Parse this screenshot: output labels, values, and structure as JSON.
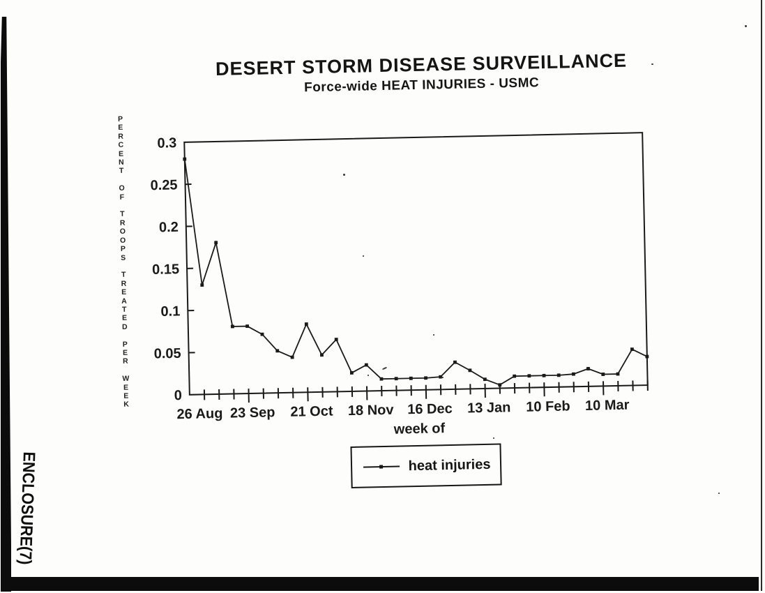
{
  "page": {
    "stamp": "ENCLOSURE(7)"
  },
  "chart_data": {
    "type": "line",
    "title": "DESERT STORM DISEASE SURVEILLANCE",
    "subtitle": "Force-wide HEAT INJURIES - USMC",
    "xlabel": "week of",
    "ylabel": "PERCENT OF TROOPS TREATED PER WEEK",
    "ylim": [
      0,
      0.3
    ],
    "y_tick_values": [
      0,
      0.05,
      0.1,
      0.15,
      0.2,
      0.25,
      0.3
    ],
    "y_tick_labels": [
      "0",
      "0.05",
      "0.1",
      "0.15",
      "0.2",
      "0.25",
      "0.3"
    ],
    "x_tick_labels": [
      "26 Aug",
      "23 Sep",
      "21 Oct",
      "18 Nov",
      "16 Dec",
      "13 Jan",
      "10 Feb",
      "10 Mar"
    ],
    "x_major_every": 4,
    "n_points": 32,
    "x_unit": "week",
    "grid": false,
    "legend_position": "bottom",
    "ink_color": "#1a1a1a",
    "series": [
      {
        "name": "heat injuries",
        "marker": "square",
        "color": "#1a1a1a",
        "values": [
          0.28,
          0.13,
          0.18,
          0.08,
          0.08,
          0.07,
          0.05,
          0.042,
          0.081,
          0.044,
          0.062,
          0.022,
          0.031,
          0.014,
          0.014,
          0.014,
          0.014,
          0.015,
          0.032,
          0.022,
          0.011,
          0.004,
          0.014,
          0.014,
          0.014,
          0.014,
          0.015,
          0.021,
          0.014,
          0.014,
          0.043,
          0.034
        ]
      }
    ]
  }
}
